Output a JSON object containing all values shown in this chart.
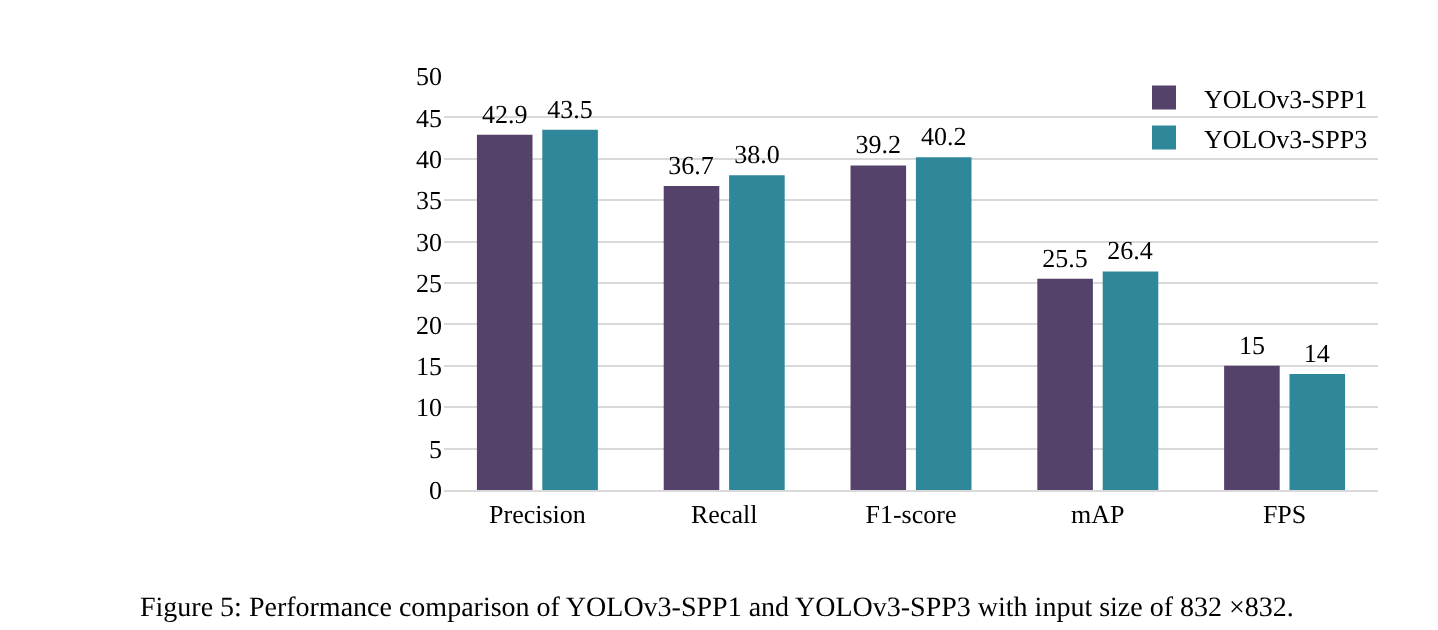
{
  "chart_data": {
    "type": "bar",
    "categories": [
      "Precision",
      "Recall",
      "F1-score",
      "mAP",
      "FPS"
    ],
    "series": [
      {
        "name": "YOLOv3-SPP1",
        "color": "#54426a",
        "values": [
          42.9,
          36.7,
          39.2,
          25.5,
          15
        ],
        "value_labels": [
          "42.9",
          "36.7",
          "39.2",
          "25.5",
          "15"
        ]
      },
      {
        "name": "YOLOv3-SPP3",
        "color": "#2f879a",
        "values": [
          43.5,
          38.0,
          40.2,
          26.4,
          14
        ],
        "value_labels": [
          "43.5",
          "38.0",
          "40.2",
          "26.4",
          "14"
        ]
      }
    ],
    "ylim": [
      0,
      50
    ],
    "yticks": [
      0,
      5,
      10,
      15,
      20,
      25,
      30,
      35,
      40,
      45,
      50
    ],
    "grid": "y",
    "legend": "top right",
    "annotations": [
      "Figure 5: Performance comparison of YOLOv3-SPP1 and YOLOv3-SPP3 with input size of 832 ×832."
    ]
  }
}
